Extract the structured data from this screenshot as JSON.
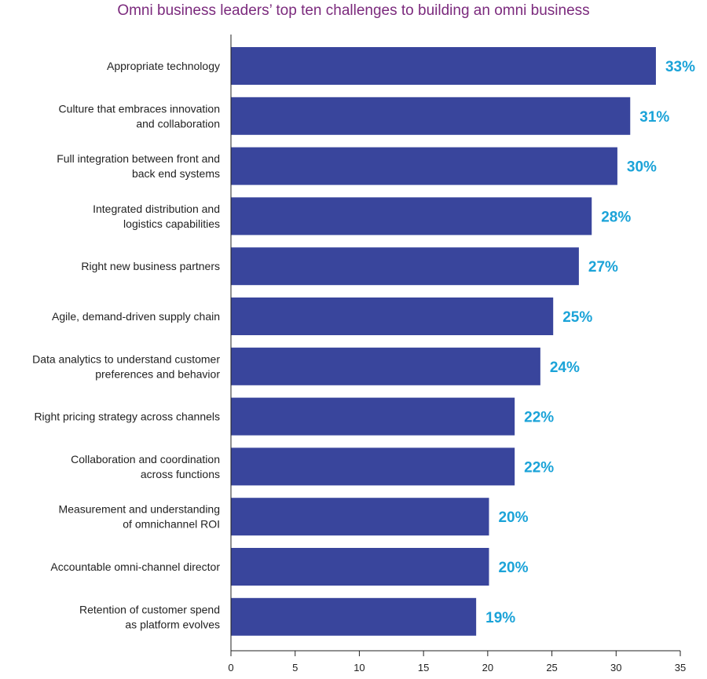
{
  "chart_data": {
    "type": "bar",
    "orientation": "horizontal",
    "title": "Omni business leaders’ top ten challenges to building an omni business",
    "categories": [
      [
        "Appropriate technology"
      ],
      [
        "Culture that embraces innovation",
        "and collaboration"
      ],
      [
        "Full integration between front and",
        "back end systems"
      ],
      [
        "Integrated distribution and",
        "logistics capabilities"
      ],
      [
        "Right new business partners"
      ],
      [
        "Agile, demand-driven supply chain"
      ],
      [
        "Data analytics to understand customer",
        "preferences and behavior"
      ],
      [
        "Right pricing strategy across channels"
      ],
      [
        "Collaboration and coordination",
        "across functions"
      ],
      [
        "Measurement and understanding",
        "of omnichannel ROI"
      ],
      [
        "Accountable omni-channel director"
      ],
      [
        "Retention of customer spend",
        "as platform evolves"
      ]
    ],
    "values": [
      33.1,
      31.1,
      30.1,
      28.1,
      27.1,
      25.1,
      24.1,
      22.1,
      22.1,
      20.1,
      20.1,
      19.1
    ],
    "value_labels": [
      "33%",
      "31%",
      "30%",
      "28%",
      "27%",
      "25%",
      "24%",
      "22%",
      "22%",
      "20%",
      "20%",
      "19%"
    ],
    "xlim": [
      0,
      35
    ],
    "xticks": [
      0,
      5,
      10,
      15,
      20,
      25,
      30,
      35
    ],
    "xtick_labels": [
      "0",
      "5",
      "10",
      "15",
      "20",
      "25",
      "30",
      "35"
    ],
    "xlabel": "",
    "ylabel": "",
    "grid": false,
    "legend": "none",
    "colors": {
      "bar": "#39459c",
      "value_label": "#1ba3d8",
      "title": "#7b2a7d",
      "axis": "#222222"
    }
  }
}
